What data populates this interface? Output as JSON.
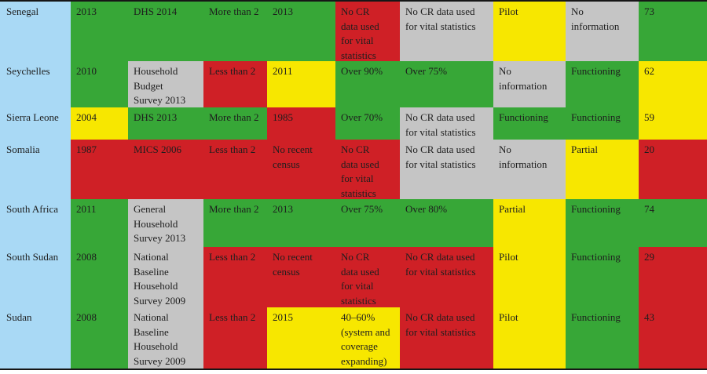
{
  "colors": {
    "green": "#37a737",
    "red": "#cf2026",
    "yellow": "#f7e700",
    "gray": "#c5c5c5",
    "blue": "#a9d9f5",
    "border": "#161616",
    "text": "#1e1e1e"
  },
  "table": {
    "rows": [
      {
        "country": "Senegal",
        "cells": [
          {
            "text": "2013",
            "color": "green"
          },
          {
            "text": "DHS 2014",
            "color": "green"
          },
          {
            "text": "More than 2",
            "color": "green"
          },
          {
            "text": "2013",
            "color": "green"
          },
          {
            "text": "No CR\ndata used\nfor vital\nstatistics",
            "color": "red"
          },
          {
            "text": "No CR data used\nfor vital statistics",
            "color": "gray"
          },
          {
            "text": "Pilot",
            "color": "yellow"
          },
          {
            "text": "No\ninformation",
            "color": "gray"
          },
          {
            "text": "73",
            "color": "green"
          }
        ]
      },
      {
        "country": "Seychelles",
        "cells": [
          {
            "text": "2010",
            "color": "green"
          },
          {
            "text": "Household\nBudget\nSurvey 2013",
            "color": "gray"
          },
          {
            "text": "Less than 2",
            "color": "red"
          },
          {
            "text": "2011",
            "color": "yellow"
          },
          {
            "text": "Over 90%",
            "color": "green"
          },
          {
            "text": "Over 75%",
            "color": "green"
          },
          {
            "text": "No\ninformation",
            "color": "gray"
          },
          {
            "text": "Functioning",
            "color": "green"
          },
          {
            "text": "62",
            "color": "yellow"
          }
        ]
      },
      {
        "country": "Sierra Leone",
        "cells": [
          {
            "text": "2004",
            "color": "yellow"
          },
          {
            "text": "DHS 2013",
            "color": "green"
          },
          {
            "text": "More than 2",
            "color": "green"
          },
          {
            "text": "1985",
            "color": "red"
          },
          {
            "text": "Over 70%",
            "color": "green"
          },
          {
            "text": "No CR data used\nfor vital statistics",
            "color": "gray"
          },
          {
            "text": "Functioning",
            "color": "green"
          },
          {
            "text": "Functioning",
            "color": "green"
          },
          {
            "text": "59",
            "color": "yellow"
          }
        ]
      },
      {
        "country": "Somalia",
        "cells": [
          {
            "text": "1987",
            "color": "red"
          },
          {
            "text": "MICS 2006",
            "color": "red"
          },
          {
            "text": "Less than 2",
            "color": "red"
          },
          {
            "text": "No recent\ncensus",
            "color": "red"
          },
          {
            "text": "No CR\ndata used\nfor vital\nstatistics",
            "color": "red"
          },
          {
            "text": "No CR data used\nfor vital statistics",
            "color": "gray"
          },
          {
            "text": "No\ninformation",
            "color": "gray"
          },
          {
            "text": "Partial",
            "color": "yellow"
          },
          {
            "text": "20",
            "color": "red"
          }
        ]
      },
      {
        "country": "South Africa",
        "cells": [
          {
            "text": "2011",
            "color": "green"
          },
          {
            "text": "General\nHousehold\nSurvey 2013",
            "color": "gray"
          },
          {
            "text": "More than 2",
            "color": "green"
          },
          {
            "text": "2013",
            "color": "green"
          },
          {
            "text": "Over 75%",
            "color": "green"
          },
          {
            "text": "Over 80%",
            "color": "green"
          },
          {
            "text": "Partial",
            "color": "yellow"
          },
          {
            "text": "Functioning",
            "color": "green"
          },
          {
            "text": "74",
            "color": "green"
          }
        ]
      },
      {
        "country": "South Sudan",
        "cells": [
          {
            "text": "2008",
            "color": "green"
          },
          {
            "text": "National\nBaseline\nHousehold\nSurvey 2009",
            "color": "gray"
          },
          {
            "text": "Less than 2",
            "color": "red"
          },
          {
            "text": "No recent\ncensus",
            "color": "red"
          },
          {
            "text": "No CR\ndata used\nfor vital\nstatistics",
            "color": "red"
          },
          {
            "text": "No CR data used\nfor vital statistics",
            "color": "red"
          },
          {
            "text": "Pilot",
            "color": "yellow"
          },
          {
            "text": "Functioning",
            "color": "green"
          },
          {
            "text": "29",
            "color": "red"
          }
        ]
      },
      {
        "country": "Sudan",
        "cells": [
          {
            "text": "2008",
            "color": "green"
          },
          {
            "text": "National\nBaseline\nHousehold\nSurvey 2009",
            "color": "gray"
          },
          {
            "text": "Less than 2",
            "color": "red"
          },
          {
            "text": "2015",
            "color": "yellow"
          },
          {
            "text": "40–60%\n(system and\ncoverage\nexpanding)",
            "color": "yellow"
          },
          {
            "text": "No CR data used\nfor vital statistics",
            "color": "red"
          },
          {
            "text": "Pilot",
            "color": "yellow"
          },
          {
            "text": "Functioning",
            "color": "green"
          },
          {
            "text": "43",
            "color": "red"
          }
        ]
      }
    ]
  }
}
